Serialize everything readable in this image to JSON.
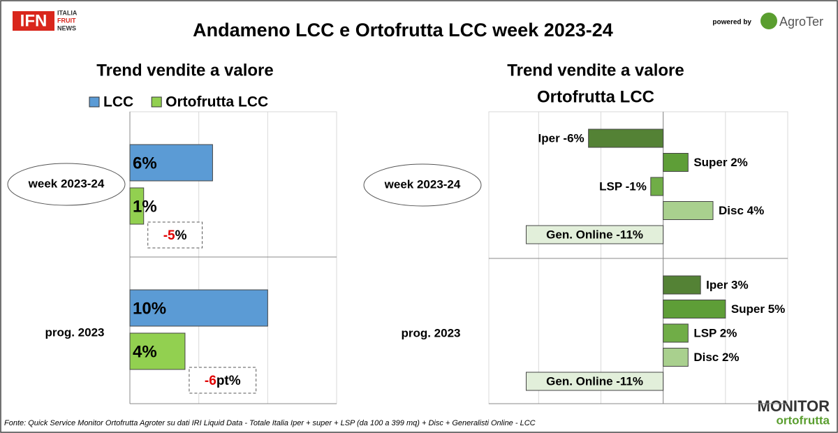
{
  "header": {
    "logo_mark": "IFN",
    "logo_lines": [
      "ITALIA",
      "FRUIT",
      "NEWS"
    ],
    "title": "Andameno LCC e Ortofrutta LCC week 2023-24",
    "powered_by": "powered by",
    "brand": "AgroTer"
  },
  "footer": {
    "source": "Fonte: Quick Service Monitor Ortofrutta Agroter su dati IRI Liquid Data - Totale Italia Iper + super + LSP (da 100 a 399 mq) + Disc + Generalisti Online - LCC",
    "logo_top": "MONITOR",
    "logo_bottom": "ortofrutta"
  },
  "chart_data": [
    {
      "type": "bar",
      "orientation": "horizontal",
      "title": "Trend vendite a valore",
      "categories": [
        "week 2023-24",
        "prog. 2023"
      ],
      "series": [
        {
          "name": "LCC",
          "color": "#5b9bd5",
          "values": [
            6,
            10
          ],
          "value_labels": [
            "6%",
            "10%"
          ]
        },
        {
          "name": "Ortofrutta LCC",
          "color": "#92d050",
          "values": [
            1,
            4
          ],
          "value_labels": [
            "1%",
            "4%"
          ]
        }
      ],
      "annotations": [
        {
          "text": "-5",
          "suffix": "%"
        },
        {
          "text": "-6",
          "suffix": "pt%"
        }
      ],
      "xlim": [
        0,
        15
      ],
      "xticks": [
        0,
        5,
        10,
        15
      ],
      "grid": true,
      "legend": "top"
    },
    {
      "type": "bar",
      "orientation": "horizontal",
      "title": "Trend vendite a valore",
      "subtitle": "Ortofrutta LCC",
      "categories": [
        "week 2023-24",
        "prog. 2023"
      ],
      "series": [
        {
          "color": "#548235",
          "values": [
            -6,
            3
          ],
          "value_labels": [
            "Iper -6%",
            "Iper 3%"
          ]
        },
        {
          "color": "#5e9e37",
          "values": [
            2,
            5
          ],
          "value_labels": [
            "Super 2%",
            "Super 5%"
          ]
        },
        {
          "color": "#70ad47",
          "values": [
            -1,
            2
          ],
          "value_labels": [
            "LSP -1%",
            "LSP 2%"
          ]
        },
        {
          "color": "#a9d08e",
          "values": [
            4,
            2
          ],
          "value_labels": [
            "Disc 4%",
            "Disc 2%"
          ]
        },
        {
          "color": "#e2efda",
          "values": [
            -11,
            -11
          ],
          "value_labels": [
            "Gen. Online -11%",
            "Gen. Online -11%"
          ]
        }
      ],
      "xlim": [
        -14,
        10
      ],
      "xticks": [
        -10,
        -5,
        0,
        5,
        10
      ],
      "grid": true,
      "legend": false
    }
  ]
}
